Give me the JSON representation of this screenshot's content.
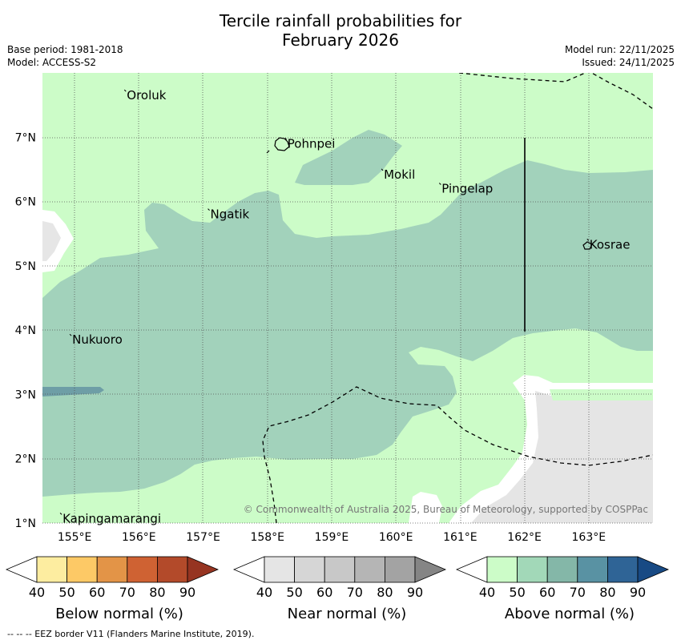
{
  "title": {
    "line1": "Tercile rainfall probabilities for",
    "line2": "February 2026"
  },
  "meta": {
    "base_period": "Base period: 1981-2018",
    "model": "Model: ACCESS-S2",
    "model_run": "Model run: 22/11/2025",
    "issued": "Issued: 24/11/2025"
  },
  "map": {
    "lon_range": [
      154.5,
      164.0
    ],
    "lat_range": [
      1.0,
      8.0
    ],
    "lon_ticks": [
      "155°E",
      "156°E",
      "157°E",
      "158°E",
      "159°E",
      "160°E",
      "161°E",
      "162°E",
      "163°E"
    ],
    "lat_ticks": [
      "1°N",
      "2°N",
      "3°N",
      "4°N",
      "5°N",
      "6°N",
      "7°N"
    ],
    "places": [
      {
        "name": "Oroluk",
        "lon": 155.8,
        "lat": 7.65
      },
      {
        "name": "Pohnpei",
        "lon": 158.3,
        "lat": 6.9
      },
      {
        "name": "Mokil",
        "lon": 159.8,
        "lat": 6.42
      },
      {
        "name": "Pingelap",
        "lon": 160.7,
        "lat": 6.2
      },
      {
        "name": "Ngatik",
        "lon": 157.1,
        "lat": 5.8
      },
      {
        "name": "Kosrae",
        "lon": 163.0,
        "lat": 5.33
      },
      {
        "name": "Nukuoro",
        "lon": 154.95,
        "lat": 3.85
      },
      {
        "name": "Kapingamarangi",
        "lon": 154.8,
        "lat": 1.07
      }
    ],
    "copyright": "© Commonwealth of Australia 2025, Bureau of Meteorology, supported by COSPPac"
  },
  "legend": {
    "ticks": [
      "40",
      "50",
      "60",
      "70",
      "80",
      "90"
    ],
    "below": {
      "label": "Below normal (%)",
      "colors": [
        "#ffffff",
        "#fdeda0",
        "#fdc966",
        "#e39447",
        "#cf6233",
        "#b34a2a",
        "#963421"
      ]
    },
    "near": {
      "label": "Near normal (%)",
      "colors": [
        "#ffffff",
        "#e5e5e5",
        "#d6d6d6",
        "#c8c8c8",
        "#b5b5b5",
        "#a3a3a3",
        "#858585"
      ]
    },
    "above": {
      "label": "Above normal (%)",
      "colors": [
        "#ffffff",
        "#ccfcc8",
        "#a2d8b8",
        "#84b7a8",
        "#5992a3",
        "#2f6496",
        "#184a84"
      ]
    }
  },
  "footer": "--  --  -- EEZ border V11 (Flanders Marine Institute, 2019)."
}
